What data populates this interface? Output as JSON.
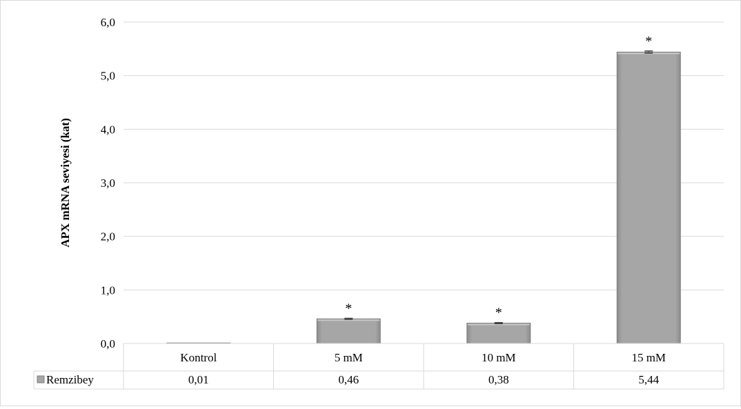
{
  "chart_data": {
    "type": "bar",
    "categories": [
      "Kontrol",
      "5 mM",
      "10 mM",
      "15 mM"
    ],
    "series": [
      {
        "name": "Remzibey",
        "values": [
          0.01,
          0.46,
          0.38,
          5.44
        ],
        "error": [
          0,
          0.01,
          0.01,
          0.02
        ]
      }
    ],
    "value_labels": [
      "0,01",
      "0,46",
      "0,38",
      "5,44"
    ],
    "significance": [
      "",
      "*",
      "*",
      "*"
    ],
    "ylabel": "APX mRNA seviyesi (kat)",
    "xlabel": "",
    "title": "",
    "ylim": [
      0,
      6
    ],
    "yticks": [
      0,
      1,
      2,
      3,
      4,
      5,
      6
    ],
    "ytick_labels": [
      "0,0",
      "1,0",
      "2,0",
      "3,0",
      "4,0",
      "5,0",
      "6,0"
    ],
    "grid": true,
    "data_table": true,
    "bar_color": "#a6a6a6",
    "grid_color": "#d9d9d9"
  }
}
